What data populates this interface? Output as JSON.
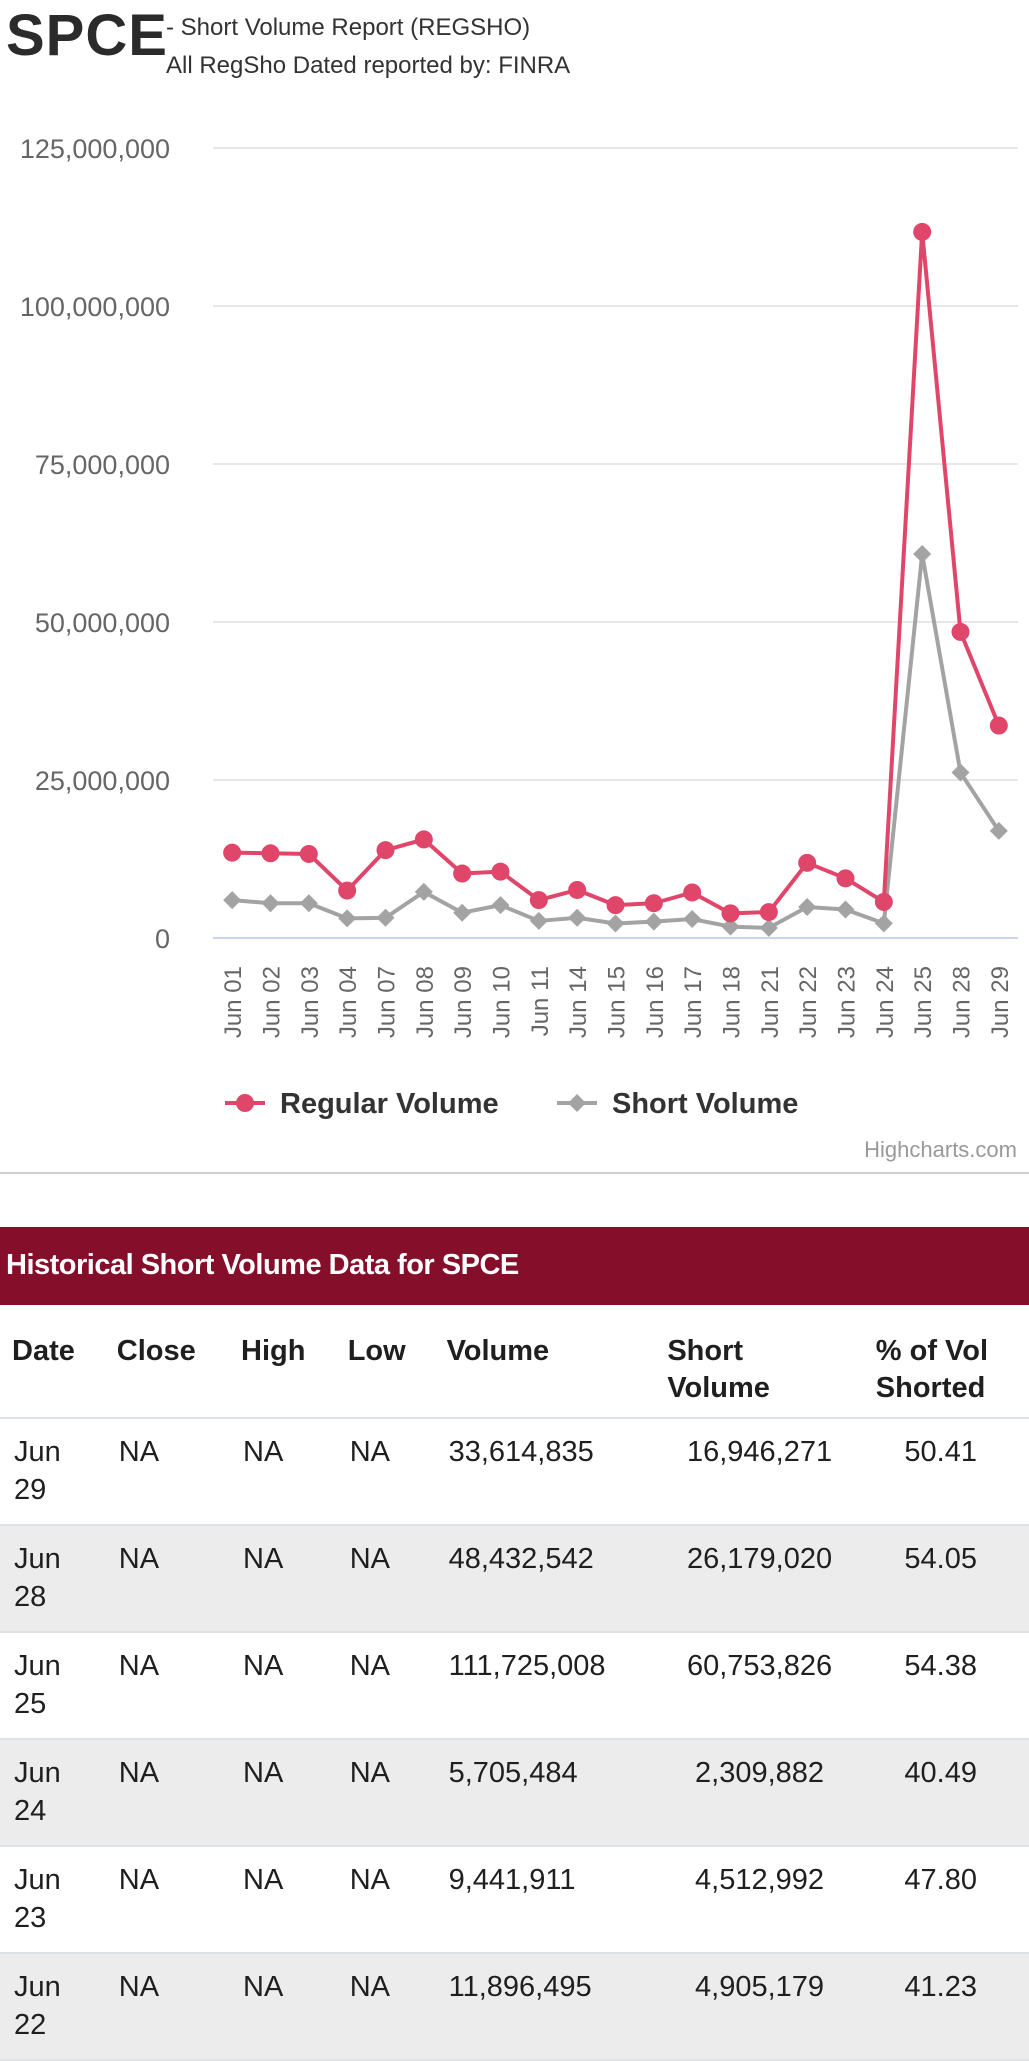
{
  "header": {
    "ticker": "SPCE",
    "subtitle": "- Short Volume Report  (REGSHO)",
    "source": "All RegSho Dated reported by: FINRA"
  },
  "chart_data": {
    "type": "line",
    "categories": [
      "Jun 01",
      "Jun 02",
      "Jun 03",
      "Jun 04",
      "Jun 07",
      "Jun 08",
      "Jun 09",
      "Jun 10",
      "Jun 11",
      "Jun 14",
      "Jun 15",
      "Jun 16",
      "Jun 17",
      "Jun 18",
      "Jun 21",
      "Jun 22",
      "Jun 23",
      "Jun 24",
      "Jun 25",
      "Jun 28",
      "Jun 29"
    ],
    "series": [
      {
        "name": "Regular Volume",
        "color": "#e0466a",
        "marker": "circle",
        "values": [
          13500000,
          13400000,
          13300000,
          7500000,
          13900000,
          15600000,
          10200000,
          10500000,
          6000000,
          7600000,
          5200000,
          5500000,
          7200000,
          3900000,
          4100000,
          11896495,
          9441911,
          5705484,
          111725008,
          48432542,
          33614835
        ]
      },
      {
        "name": "Short Volume",
        "color": "#a3a3a3",
        "marker": "diamond",
        "values": [
          6000000,
          5500000,
          5500000,
          3100000,
          3200000,
          7300000,
          4000000,
          5200000,
          2700000,
          3200000,
          2300000,
          2600000,
          3000000,
          1800000,
          1600000,
          4905179,
          4512992,
          2309882,
          60753826,
          26179020,
          16946271
        ]
      }
    ],
    "yticks": [
      "125,000,000",
      "100,000,000",
      "75,000,000",
      "50,000,000",
      "25,000,000",
      "0"
    ],
    "ylim": [
      0,
      125000000
    ],
    "legend_position": "bottom-center",
    "grid": true,
    "credit": "Highcharts.com"
  },
  "table": {
    "title": "Historical Short Volume Data for SPCE",
    "headers": [
      "Date",
      "Close",
      "High",
      "Low",
      "Volume",
      "Short\nVolume",
      "% of Vol\nShorted"
    ],
    "rows": [
      [
        "Jun\n29",
        "NA",
        "NA",
        "NA",
        "33,614,835",
        "16,946,271",
        "50.41"
      ],
      [
        "Jun\n28",
        "NA",
        "NA",
        "NA",
        "48,432,542",
        "26,179,020",
        "54.05"
      ],
      [
        "Jun\n25",
        "NA",
        "NA",
        "NA",
        "111,725,008",
        "60,753,826",
        "54.38"
      ],
      [
        "Jun\n24",
        "NA",
        "NA",
        "NA",
        "5,705,484",
        "2,309,882",
        "40.49"
      ],
      [
        "Jun\n23",
        "NA",
        "NA",
        "NA",
        "9,441,911",
        "4,512,992",
        "47.80"
      ],
      [
        "Jun\n22",
        "NA",
        "NA",
        "NA",
        "11,896,495",
        "4,905,179",
        "41.23"
      ]
    ]
  }
}
